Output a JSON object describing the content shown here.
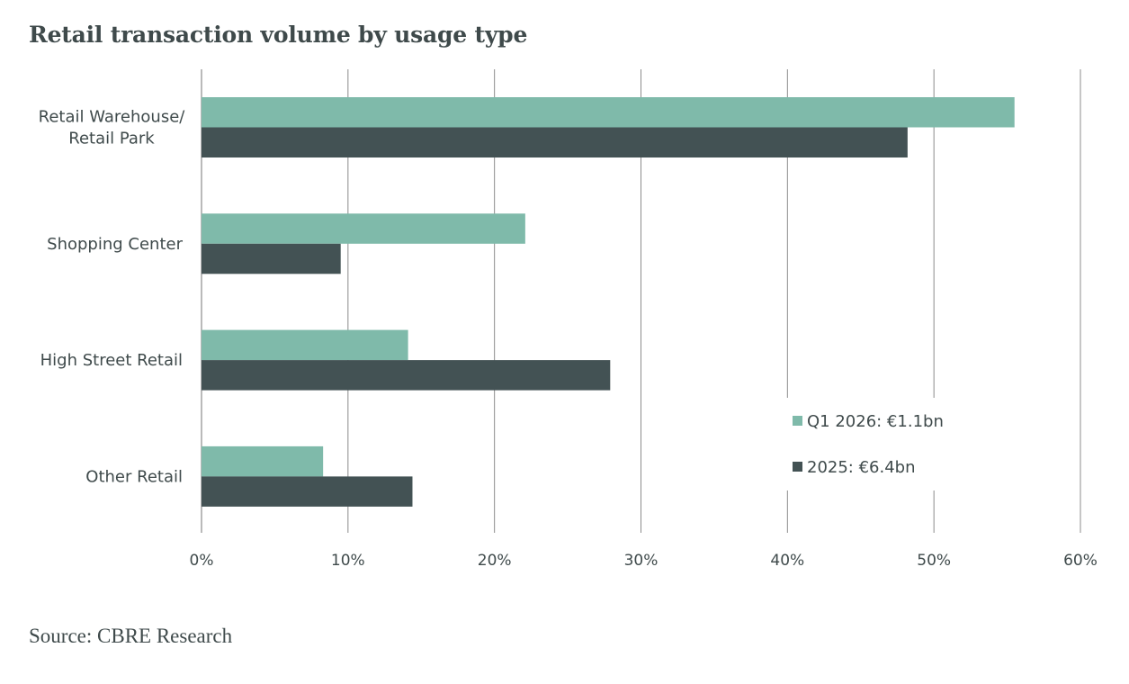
{
  "title": "Retail transaction volume by usage type",
  "source": "Source: CBRE Research",
  "colors": {
    "series_q1_2026": "#7fbaaa",
    "series_2025": "#435254",
    "gridline": "#8c8c8c",
    "text": "#3f4a4b"
  },
  "chart_data": {
    "type": "bar",
    "orientation": "horizontal",
    "categories": [
      [
        "Retail Warehouse/",
        "Retail Park"
      ],
      [
        "Shopping Center"
      ],
      [
        "High Street Retail"
      ],
      [
        "Other Retail"
      ]
    ],
    "series": [
      {
        "name": "Q1 2026: €1.1bn",
        "color": "#7fbaaa",
        "values": [
          55.5,
          22.1,
          14.1,
          8.3
        ]
      },
      {
        "name": "2025: €6.4bn",
        "color": "#435254",
        "values": [
          48.2,
          9.5,
          27.9,
          14.4
        ]
      }
    ],
    "xlim": [
      0,
      60
    ],
    "xticks": [
      0,
      10,
      20,
      30,
      40,
      50,
      60
    ],
    "xtick_labels": [
      "0%",
      "10%",
      "20%",
      "30%",
      "40%",
      "50%",
      "60%"
    ],
    "xlabel": "",
    "ylabel": "",
    "grid": true,
    "legend_position": "lower-right"
  }
}
